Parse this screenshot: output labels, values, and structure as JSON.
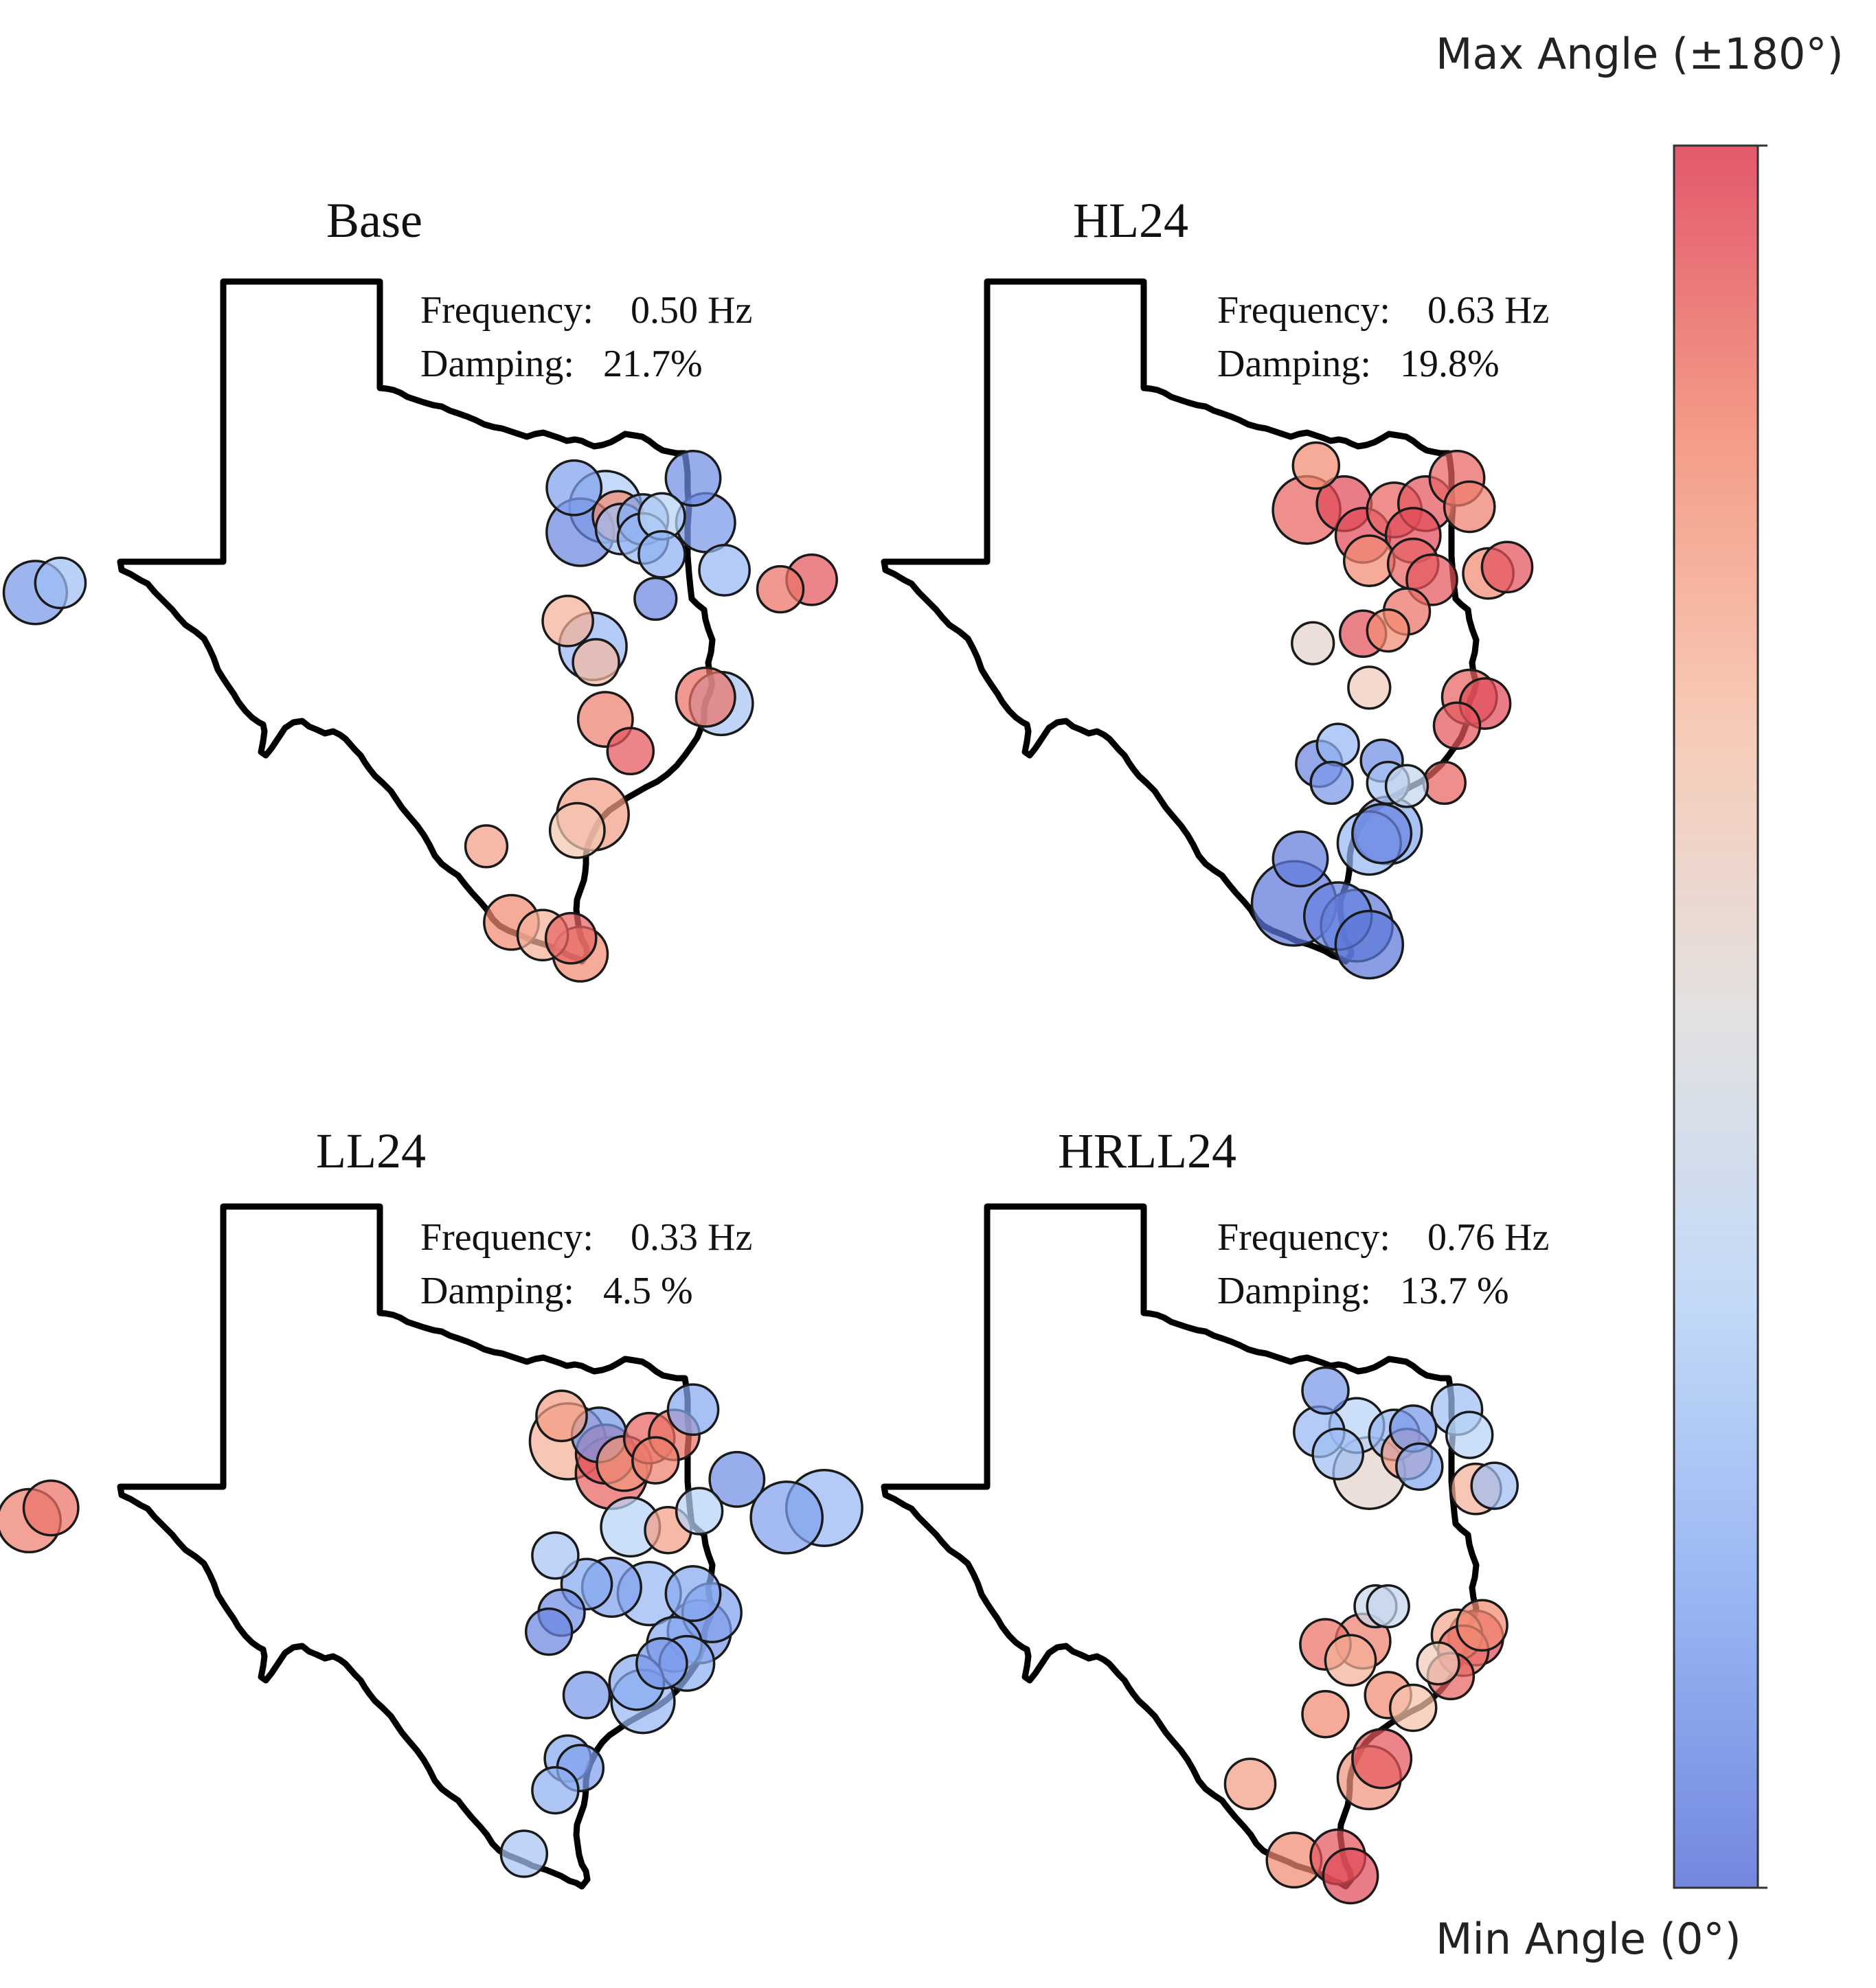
{
  "colorbar": {
    "max_label": "Max Angle (±180°)",
    "min_label": "Min Angle (0°)",
    "colors": [
      "#5a73d8",
      "#86a9f1",
      "#b7d2f6",
      "#dddcdc",
      "#f6c2aa",
      "#f28b72",
      "#dd3c52"
    ]
  },
  "panels": [
    {
      "title": "Base",
      "frequency_label": "Frequency:",
      "frequency_value": "0.50 Hz",
      "damping_label": "Damping:",
      "damping_value": "21.7%",
      "buses": [
        {
          "lon": -106.0,
          "lat": 31.6,
          "angle": 20,
          "mag": 0.45
        },
        {
          "lon": -105.6,
          "lat": 31.75,
          "angle": 45,
          "mag": 0.3
        },
        {
          "lon": -97.4,
          "lat": 33.25,
          "angle": 25,
          "mag": 0.35
        },
        {
          "lon": -96.9,
          "lat": 32.95,
          "angle": 55,
          "mag": 0.55
        },
        {
          "lon": -97.3,
          "lat": 32.55,
          "angle": 10,
          "mag": 0.5
        },
        {
          "lon": -96.7,
          "lat": 32.8,
          "angle": 150,
          "mag": 0.3
        },
        {
          "lon": -96.65,
          "lat": 32.6,
          "angle": 45,
          "mag": 0.3
        },
        {
          "lon": -96.3,
          "lat": 32.75,
          "angle": 30,
          "mag": 0.3
        },
        {
          "lon": -96.0,
          "lat": 32.8,
          "angle": 60,
          "mag": 0.25
        },
        {
          "lon": -96.3,
          "lat": 32.45,
          "angle": 40,
          "mag": 0.3
        },
        {
          "lon": -95.5,
          "lat": 33.4,
          "angle": 15,
          "mag": 0.35
        },
        {
          "lon": -95.3,
          "lat": 32.7,
          "angle": 20,
          "mag": 0.4
        },
        {
          "lon": -96.0,
          "lat": 32.2,
          "angle": 35,
          "mag": 0.25
        },
        {
          "lon": -95.0,
          "lat": 31.95,
          "angle": 40,
          "mag": 0.3
        },
        {
          "lon": -96.1,
          "lat": 31.5,
          "angle": 10,
          "mag": 0.2
        },
        {
          "lon": -97.5,
          "lat": 31.15,
          "angle": 130,
          "mag": 0.3
        },
        {
          "lon": -97.1,
          "lat": 30.75,
          "angle": 40,
          "mag": 0.5
        },
        {
          "lon": -97.05,
          "lat": 30.5,
          "angle": 125,
          "mag": 0.25
        },
        {
          "lon": -95.3,
          "lat": 29.95,
          "angle": 160,
          "mag": 0.4
        },
        {
          "lon": -95.05,
          "lat": 29.85,
          "angle": 50,
          "mag": 0.45
        },
        {
          "lon": -96.9,
          "lat": 29.6,
          "angle": 155,
          "mag": 0.35
        },
        {
          "lon": -96.5,
          "lat": 29.1,
          "angle": 170,
          "mag": 0.25
        },
        {
          "lon": -97.1,
          "lat": 28.1,
          "angle": 140,
          "mag": 0.55
        },
        {
          "lon": -97.35,
          "lat": 27.85,
          "angle": 115,
          "mag": 0.35
        },
        {
          "lon": -98.8,
          "lat": 27.6,
          "angle": 140,
          "mag": 0.2
        },
        {
          "lon": -98.4,
          "lat": 26.4,
          "angle": 150,
          "mag": 0.35
        },
        {
          "lon": -97.9,
          "lat": 26.2,
          "angle": 130,
          "mag": 0.3
        },
        {
          "lon": -97.45,
          "lat": 26.15,
          "angle": 165,
          "mag": 0.3
        },
        {
          "lon": -97.3,
          "lat": 25.9,
          "angle": 150,
          "mag": 0.35
        }
      ]
    },
    {
      "title": "HL24",
      "frequency_label": "Frequency:",
      "frequency_value": "0.63 Hz",
      "damping_label": "Damping:",
      "damping_value": "19.8%",
      "buses": [
        {
          "lon": -106.3,
          "lat": 31.65,
          "angle": 160,
          "mag": 0.25
        },
        {
          "lon": -105.8,
          "lat": 31.8,
          "angle": 170,
          "mag": 0.3
        },
        {
          "lon": -97.75,
          "lat": 33.6,
          "angle": 150,
          "mag": 0.25
        },
        {
          "lon": -97.9,
          "lat": 32.9,
          "angle": 165,
          "mag": 0.5
        },
        {
          "lon": -97.3,
          "lat": 33.0,
          "angle": 175,
          "mag": 0.35
        },
        {
          "lon": -97.0,
          "lat": 32.5,
          "angle": 175,
          "mag": 0.35
        },
        {
          "lon": -96.5,
          "lat": 32.9,
          "angle": 165,
          "mag": 0.35
        },
        {
          "lon": -96.0,
          "lat": 33.0,
          "angle": 170,
          "mag": 0.35
        },
        {
          "lon": -96.2,
          "lat": 32.5,
          "angle": 175,
          "mag": 0.35
        },
        {
          "lon": -96.9,
          "lat": 32.1,
          "angle": 150,
          "mag": 0.3
        },
        {
          "lon": -96.2,
          "lat": 32.05,
          "angle": 165,
          "mag": 0.3
        },
        {
          "lon": -95.9,
          "lat": 31.8,
          "angle": 170,
          "mag": 0.3
        },
        {
          "lon": -95.5,
          "lat": 33.4,
          "angle": 165,
          "mag": 0.35
        },
        {
          "lon": -95.3,
          "lat": 32.95,
          "angle": 155,
          "mag": 0.3
        },
        {
          "lon": -95.0,
          "lat": 31.9,
          "angle": 150,
          "mag": 0.3
        },
        {
          "lon": -94.7,
          "lat": 32.0,
          "angle": 172,
          "mag": 0.3
        },
        {
          "lon": -96.3,
          "lat": 31.3,
          "angle": 160,
          "mag": 0.25
        },
        {
          "lon": -96.6,
          "lat": 31.0,
          "angle": 150,
          "mag": 0.2
        },
        {
          "lon": -97.0,
          "lat": 30.95,
          "angle": 172,
          "mag": 0.25
        },
        {
          "lon": -97.8,
          "lat": 30.8,
          "angle": 100,
          "mag": 0.2
        },
        {
          "lon": -96.9,
          "lat": 30.1,
          "angle": 110,
          "mag": 0.2
        },
        {
          "lon": -95.3,
          "lat": 29.95,
          "angle": 165,
          "mag": 0.35
        },
        {
          "lon": -95.05,
          "lat": 29.85,
          "angle": 175,
          "mag": 0.3
        },
        {
          "lon": -95.5,
          "lat": 29.5,
          "angle": 170,
          "mag": 0.25
        },
        {
          "lon": -95.7,
          "lat": 28.6,
          "angle": 165,
          "mag": 0.2
        },
        {
          "lon": -97.4,
          "lat": 29.2,
          "angle": 40,
          "mag": 0.2
        },
        {
          "lon": -97.7,
          "lat": 28.9,
          "angle": 10,
          "mag": 0.25
        },
        {
          "lon": -97.5,
          "lat": 28.6,
          "angle": 20,
          "mag": 0.2
        },
        {
          "lon": -96.7,
          "lat": 28.95,
          "angle": 15,
          "mag": 0.2
        },
        {
          "lon": -96.6,
          "lat": 28.6,
          "angle": 50,
          "mag": 0.2
        },
        {
          "lon": -96.3,
          "lat": 28.55,
          "angle": 70,
          "mag": 0.2
        },
        {
          "lon": -96.9,
          "lat": 27.65,
          "angle": 40,
          "mag": 0.45
        },
        {
          "lon": -96.6,
          "lat": 27.85,
          "angle": 30,
          "mag": 0.5
        },
        {
          "lon": -96.7,
          "lat": 27.8,
          "angle": 10,
          "mag": 0.4
        },
        {
          "lon": -98.0,
          "lat": 27.4,
          "angle": 5,
          "mag": 0.35
        },
        {
          "lon": -98.1,
          "lat": 26.7,
          "angle": 3,
          "mag": 0.7
        },
        {
          "lon": -97.4,
          "lat": 26.5,
          "angle": 8,
          "mag": 0.5
        },
        {
          "lon": -97.1,
          "lat": 26.35,
          "angle": 5,
          "mag": 0.55
        },
        {
          "lon": -96.9,
          "lat": 26.05,
          "angle": 2,
          "mag": 0.5
        }
      ]
    },
    {
      "title": "LL24",
      "frequency_label": "Frequency:",
      "frequency_value": "0.33 Hz",
      "damping_label": "Damping:",
      "damping_value": "4.5 %",
      "buses": [
        {
          "lon": -106.1,
          "lat": 31.55,
          "angle": 155,
          "mag": 0.45
        },
        {
          "lon": -105.75,
          "lat": 31.75,
          "angle": 160,
          "mag": 0.35
        },
        {
          "lon": -97.6,
          "lat": 33.2,
          "angle": 140,
          "mag": 0.3
        },
        {
          "lon": -97.5,
          "lat": 32.8,
          "angle": 130,
          "mag": 0.6
        },
        {
          "lon": -97.0,
          "lat": 32.9,
          "angle": 20,
          "mag": 0.35
        },
        {
          "lon": -96.9,
          "lat": 32.6,
          "angle": 170,
          "mag": 0.4
        },
        {
          "lon": -96.8,
          "lat": 32.3,
          "angle": 165,
          "mag": 0.55
        },
        {
          "lon": -96.6,
          "lat": 32.45,
          "angle": 145,
          "mag": 0.35
        },
        {
          "lon": -96.2,
          "lat": 32.85,
          "angle": 165,
          "mag": 0.3
        },
        {
          "lon": -95.8,
          "lat": 32.9,
          "angle": 160,
          "mag": 0.3
        },
        {
          "lon": -96.1,
          "lat": 32.5,
          "angle": 155,
          "mag": 0.25
        },
        {
          "lon": -95.5,
          "lat": 33.3,
          "angle": 30,
          "mag": 0.3
        },
        {
          "lon": -94.8,
          "lat": 32.2,
          "angle": 15,
          "mag": 0.35
        },
        {
          "lon": -96.5,
          "lat": 31.45,
          "angle": 60,
          "mag": 0.4
        },
        {
          "lon": -95.9,
          "lat": 31.4,
          "angle": 140,
          "mag": 0.25
        },
        {
          "lon": -95.4,
          "lat": 31.7,
          "angle": 60,
          "mag": 0.25
        },
        {
          "lon": -97.7,
          "lat": 31.0,
          "angle": 50,
          "mag": 0.25
        },
        {
          "lon": -96.8,
          "lat": 30.5,
          "angle": 25,
          "mag": 0.4
        },
        {
          "lon": -96.2,
          "lat": 30.4,
          "angle": 40,
          "mag": 0.45
        },
        {
          "lon": -97.2,
          "lat": 30.55,
          "angle": 30,
          "mag": 0.3
        },
        {
          "lon": -97.6,
          "lat": 30.1,
          "angle": 15,
          "mag": 0.25
        },
        {
          "lon": -97.8,
          "lat": 29.8,
          "angle": 10,
          "mag": 0.25
        },
        {
          "lon": -95.5,
          "lat": 30.4,
          "angle": 30,
          "mag": 0.35
        },
        {
          "lon": -95.2,
          "lat": 30.1,
          "angle": 25,
          "mag": 0.4
        },
        {
          "lon": -95.4,
          "lat": 29.8,
          "angle": 20,
          "mag": 0.45
        },
        {
          "lon": -95.8,
          "lat": 29.6,
          "angle": 30,
          "mag": 0.35
        },
        {
          "lon": -95.6,
          "lat": 29.3,
          "angle": 35,
          "mag": 0.35
        },
        {
          "lon": -96.0,
          "lat": 29.3,
          "angle": 20,
          "mag": 0.3
        },
        {
          "lon": -96.4,
          "lat": 29.0,
          "angle": 30,
          "mag": 0.35
        },
        {
          "lon": -96.3,
          "lat": 28.7,
          "angle": 40,
          "mag": 0.45
        },
        {
          "lon": -97.2,
          "lat": 28.8,
          "angle": 20,
          "mag": 0.25
        },
        {
          "lon": -97.5,
          "lat": 27.8,
          "angle": 30,
          "mag": 0.25
        },
        {
          "lon": -97.3,
          "lat": 27.65,
          "angle": 25,
          "mag": 0.25
        },
        {
          "lon": -97.7,
          "lat": 27.3,
          "angle": 35,
          "mag": 0.25
        },
        {
          "lon": -98.2,
          "lat": 26.3,
          "angle": 50,
          "mag": 0.25
        }
      ]
    },
    {
      "title": "HRLL24",
      "frequency_label": "Frequency:",
      "frequency_value": "0.76 Hz",
      "damping_label": "Damping:",
      "damping_value": "13.7 %",
      "buses": [
        {
          "lon": -106.2,
          "lat": 31.6,
          "angle": 25,
          "mag": 0.55
        },
        {
          "lon": -105.6,
          "lat": 31.75,
          "angle": 40,
          "mag": 0.6
        },
        {
          "lon": -97.6,
          "lat": 33.6,
          "angle": 20,
          "mag": 0.25
        },
        {
          "lon": -97.7,
          "lat": 32.95,
          "angle": 40,
          "mag": 0.3
        },
        {
          "lon": -97.1,
          "lat": 33.05,
          "angle": 60,
          "mag": 0.35
        },
        {
          "lon": -97.4,
          "lat": 32.6,
          "angle": 45,
          "mag": 0.3
        },
        {
          "lon": -96.9,
          "lat": 32.3,
          "angle": 100,
          "mag": 0.55
        },
        {
          "lon": -96.5,
          "lat": 32.9,
          "angle": 40,
          "mag": 0.3
        },
        {
          "lon": -96.2,
          "lat": 33.0,
          "angle": 20,
          "mag": 0.25
        },
        {
          "lon": -96.3,
          "lat": 32.6,
          "angle": 140,
          "mag": 0.3
        },
        {
          "lon": -96.1,
          "lat": 32.4,
          "angle": 30,
          "mag": 0.25
        },
        {
          "lon": -95.5,
          "lat": 33.3,
          "angle": 45,
          "mag": 0.3
        },
        {
          "lon": -95.3,
          "lat": 32.9,
          "angle": 60,
          "mag": 0.25
        },
        {
          "lon": -95.2,
          "lat": 32.05,
          "angle": 130,
          "mag": 0.3
        },
        {
          "lon": -94.9,
          "lat": 32.1,
          "angle": 45,
          "mag": 0.25
        },
        {
          "lon": -96.8,
          "lat": 30.2,
          "angle": 75,
          "mag": 0.2
        },
        {
          "lon": -96.6,
          "lat": 30.2,
          "angle": 70,
          "mag": 0.2
        },
        {
          "lon": -97.6,
          "lat": 29.6,
          "angle": 160,
          "mag": 0.3
        },
        {
          "lon": -97.0,
          "lat": 29.65,
          "angle": 155,
          "mag": 0.35
        },
        {
          "lon": -97.2,
          "lat": 29.35,
          "angle": 130,
          "mag": 0.3
        },
        {
          "lon": -95.5,
          "lat": 29.75,
          "angle": 135,
          "mag": 0.3
        },
        {
          "lon": -95.4,
          "lat": 29.5,
          "angle": 160,
          "mag": 0.3
        },
        {
          "lon": -95.2,
          "lat": 29.7,
          "angle": 175,
          "mag": 0.35
        },
        {
          "lon": -95.1,
          "lat": 29.9,
          "angle": 150,
          "mag": 0.3
        },
        {
          "lon": -95.8,
          "lat": 29.3,
          "angle": 110,
          "mag": 0.2
        },
        {
          "lon": -95.6,
          "lat": 29.1,
          "angle": 165,
          "mag": 0.25
        },
        {
          "lon": -96.6,
          "lat": 28.8,
          "angle": 150,
          "mag": 0.25
        },
        {
          "lon": -96.2,
          "lat": 28.6,
          "angle": 120,
          "mag": 0.25
        },
        {
          "lon": -97.6,
          "lat": 28.5,
          "angle": 150,
          "mag": 0.25
        },
        {
          "lon": -96.7,
          "lat": 27.8,
          "angle": 170,
          "mag": 0.4
        },
        {
          "lon": -96.9,
          "lat": 27.5,
          "angle": 145,
          "mag": 0.45
        },
        {
          "lon": -98.8,
          "lat": 27.4,
          "angle": 140,
          "mag": 0.3
        },
        {
          "lon": -98.1,
          "lat": 26.2,
          "angle": 150,
          "mag": 0.35
        },
        {
          "lon": -97.4,
          "lat": 26.25,
          "angle": 170,
          "mag": 0.35
        },
        {
          "lon": -97.2,
          "lat": 25.95,
          "angle": 175,
          "mag": 0.35
        }
      ]
    }
  ]
}
